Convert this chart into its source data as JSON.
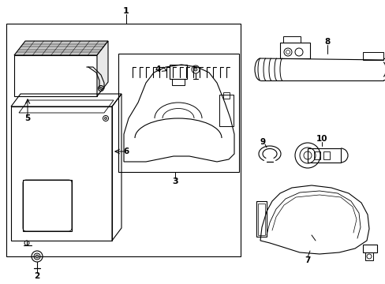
{
  "bg_color": "#ffffff",
  "lc": "#000000",
  "lw": 0.8,
  "label_fs": 7.5
}
